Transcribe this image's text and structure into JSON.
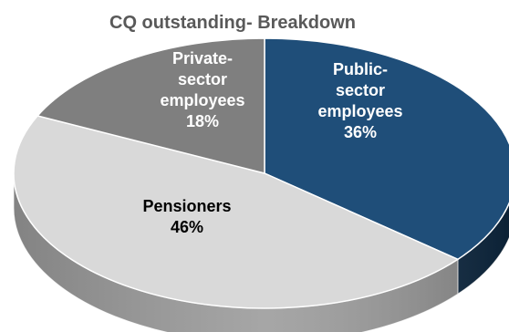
{
  "chart_data": {
    "type": "pie",
    "title": "CQ outstanding- Breakdown",
    "slices": [
      {
        "name": "Public-sector employees",
        "value": 36,
        "label_lines": [
          "Public-",
          "sector",
          "employees",
          "36%"
        ],
        "color": "#1f4e79",
        "side_color": "#0d2a45",
        "text_color": "#ffffff"
      },
      {
        "name": "Pensioners",
        "value": 46,
        "label_lines": [
          "Pensioners",
          "46%"
        ],
        "color": "#d9d9d9",
        "side_color": "#9a9a9a",
        "text_color": "#000000"
      },
      {
        "name": "Private-sector employees",
        "value": 18,
        "label_lines": [
          "Private-",
          "sector",
          "employees",
          "18%"
        ],
        "color": "#7f7f7f",
        "side_color": "#5a5a5a",
        "text_color": "#ffffff"
      }
    ],
    "start_angle_deg": -90,
    "direction": "clockwise",
    "style": "3d"
  }
}
